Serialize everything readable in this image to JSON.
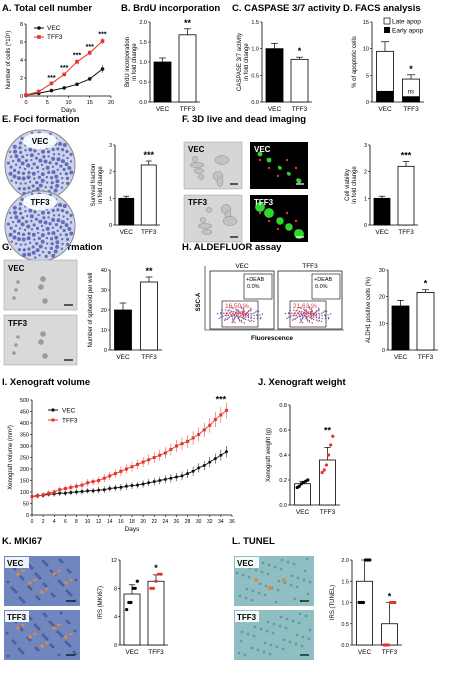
{
  "colors": {
    "red": "#e8322b",
    "black": "#111111",
    "white": "#ffffff",
    "gray": "#aaaaaa",
    "blue": "#3a4fa8",
    "purple": "#6a58b8",
    "green": "#2fd62f",
    "tissue_blue": "#6f86bf",
    "tunel_cyan": "#8fbfc3",
    "stain_orange": "#d98a4a"
  },
  "panels": {
    "A": {
      "title": "A. Total cell number",
      "legend": [
        "VEC",
        "TFF3"
      ],
      "stars": [
        "***",
        "***",
        "***",
        "***",
        "***"
      ]
    },
    "B": {
      "title": "B. BrdU incorporation",
      "stars": "**"
    },
    "C": {
      "title": "C. CASPASE 3/7 activity",
      "stars": "*"
    },
    "D": {
      "title": "D. FACS analysis",
      "legend": [
        "Late apop",
        "Early apop"
      ],
      "stars": "*",
      "ns": "ns"
    },
    "E": {
      "title": "E. Foci formation",
      "labels": [
        "VEC",
        "TFF3"
      ],
      "stars": "***"
    },
    "F": {
      "title": "F. 3D live and dead imaging",
      "labels": [
        "VEC",
        "VEC",
        "TFF3",
        "TFF3"
      ],
      "stars": "***"
    },
    "G": {
      "title": "G. Spheroid formation",
      "labels": [
        "VEC",
        "TFF3"
      ],
      "stars": "**"
    },
    "H": {
      "title": "H. ALDEFLUOR assay",
      "flow": {
        "groups": [
          "VEC",
          "TFF3"
        ],
        "deab_label": "+DEAB",
        "deab_value": "0.0%",
        "pcts": [
          "16.50 %",
          "21.63 %"
        ],
        "errs": [
          "± 2.09%",
          "± 0.98%"
        ],
        "xlabel": "Fluorescence",
        "ylabel": "SSC-A"
      },
      "stars": "*"
    },
    "I": {
      "title": "I. Xenograft volume",
      "legend": [
        "VEC",
        "TFF3"
      ],
      "stars": "***"
    },
    "J": {
      "title": "J. Xenograft weight",
      "stars": "**"
    },
    "K": {
      "title": "K. MKI67",
      "labels": [
        "VEC",
        "TFF3"
      ],
      "stars": "*"
    },
    "L": {
      "title": "L. TUNEL",
      "labels": [
        "VEC",
        "TFF3"
      ],
      "stars": "*"
    }
  },
  "chart_data": [
    {
      "id": "A",
      "type": "line",
      "x": [
        0,
        3,
        6,
        9,
        12,
        15,
        18
      ],
      "series": [
        {
          "name": "VEC",
          "values": [
            0.1,
            0.3,
            0.6,
            0.9,
            1.3,
            1.9,
            3.0
          ],
          "errors": [
            0,
            0,
            0.05,
            0.1,
            0.15,
            0.2,
            0.4
          ]
        },
        {
          "name": "TFF3",
          "values": [
            0.1,
            0.5,
            1.4,
            2.4,
            3.8,
            4.8,
            6.1
          ],
          "errors": [
            0,
            0.1,
            0.15,
            0.2,
            0.3,
            0.3,
            0.35
          ]
        }
      ],
      "xlabel": "Days",
      "ylabel": "Number of cells (*10⁵)",
      "xlim": [
        0,
        20
      ],
      "ylim": [
        0,
        8
      ],
      "xticks": [
        0,
        5,
        10,
        15,
        20
      ],
      "yticks": [
        0,
        2,
        4,
        6,
        8
      ]
    },
    {
      "id": "B",
      "type": "bar",
      "categories": [
        "VEC",
        "TFF3"
      ],
      "values": [
        1.0,
        1.68
      ],
      "errors": [
        0.1,
        0.15
      ],
      "ylabel": "BrdU incorporation in fold change",
      "ylim": [
        0,
        2
      ],
      "yticks": [
        0.0,
        0.5,
        1.0,
        1.5,
        2.0
      ]
    },
    {
      "id": "C",
      "type": "bar",
      "categories": [
        "VEC",
        "TFF3"
      ],
      "values": [
        1.0,
        0.8
      ],
      "errors": [
        0.1,
        0.04
      ],
      "ylabel": "CASPASE 3/7 activity in fold change",
      "ylim": [
        0,
        1.5
      ],
      "yticks": [
        0.0,
        0.5,
        1.0,
        1.5
      ]
    },
    {
      "id": "D",
      "type": "bar",
      "categories": [
        "VEC",
        "TFF3"
      ],
      "series": [
        {
          "name": "Early apop",
          "values": [
            2.0,
            1.0
          ]
        },
        {
          "name": "Late apop",
          "values": [
            7.5,
            3.3
          ]
        }
      ],
      "errors": [
        1.8,
        0.8
      ],
      "ylabel": "% of apoptotic cells",
      "ylim": [
        0,
        15
      ],
      "yticks": [
        0,
        5,
        10,
        15
      ]
    },
    {
      "id": "E",
      "type": "bar",
      "categories": [
        "VEC",
        "TFF3"
      ],
      "values": [
        1.0,
        2.25
      ],
      "errors": [
        0.08,
        0.15
      ],
      "ylabel": "Survival fraction in fold change",
      "ylim": [
        0,
        3
      ],
      "yticks": [
        0,
        1,
        2,
        3
      ]
    },
    {
      "id": "F",
      "type": "bar",
      "categories": [
        "VEC",
        "TFF3"
      ],
      "values": [
        1.0,
        2.2
      ],
      "errors": [
        0.08,
        0.18
      ],
      "ylabel": "Cell viability in fold change",
      "ylim": [
        0,
        3
      ],
      "yticks": [
        0,
        1,
        2,
        3
      ]
    },
    {
      "id": "G",
      "type": "bar",
      "categories": [
        "VEC",
        "TFF3"
      ],
      "values": [
        20,
        34
      ],
      "errors": [
        3.5,
        2.5
      ],
      "ylabel": "Number of spheroid per well",
      "ylim": [
        0,
        40
      ],
      "yticks": [
        0,
        10,
        20,
        30,
        40
      ]
    },
    {
      "id": "H",
      "type": "bar",
      "categories": [
        "VEC",
        "TFF3"
      ],
      "values": [
        16.5,
        21.6
      ],
      "errors": [
        2.1,
        1.0
      ],
      "ylabel": "ALDH1 positive cells (%)",
      "ylim": [
        0,
        30
      ],
      "yticks": [
        0,
        10,
        20,
        30
      ]
    },
    {
      "id": "I",
      "type": "line",
      "x": [
        0,
        1,
        2,
        3,
        4,
        5,
        6,
        7,
        8,
        9,
        10,
        11,
        12,
        13,
        14,
        15,
        16,
        17,
        18,
        19,
        20,
        21,
        22,
        23,
        24,
        25,
        26,
        27,
        28,
        29,
        30,
        31,
        32,
        33,
        34,
        35
      ],
      "series": [
        {
          "name": "VEC",
          "values": [
            80,
            85,
            85,
            90,
            92,
            95,
            95,
            98,
            100,
            102,
            105,
            105,
            108,
            110,
            115,
            118,
            120,
            125,
            128,
            130,
            135,
            140,
            145,
            150,
            155,
            160,
            165,
            170,
            180,
            190,
            205,
            215,
            230,
            245,
            260,
            275
          ],
          "errors": [
            10,
            10,
            10,
            10,
            12,
            12,
            12,
            12,
            12,
            12,
            12,
            12,
            14,
            14,
            14,
            14,
            15,
            15,
            15,
            15,
            16,
            16,
            17,
            17,
            18,
            18,
            18,
            19,
            19,
            20,
            20,
            20,
            22,
            22,
            24,
            25
          ]
        },
        {
          "name": "TFF3",
          "values": [
            80,
            82,
            88,
            95,
            100,
            110,
            115,
            120,
            125,
            130,
            140,
            145,
            150,
            160,
            170,
            180,
            190,
            200,
            210,
            220,
            230,
            240,
            250,
            260,
            270,
            285,
            300,
            310,
            320,
            335,
            350,
            370,
            390,
            415,
            435,
            455
          ],
          "errors": [
            10,
            10,
            12,
            12,
            12,
            14,
            14,
            14,
            15,
            15,
            16,
            16,
            17,
            18,
            18,
            19,
            20,
            20,
            21,
            22,
            22,
            23,
            24,
            24,
            25,
            26,
            27,
            28,
            28,
            29,
            30,
            31,
            32,
            33,
            34,
            35
          ]
        }
      ],
      "xlabel": "Days",
      "ylabel": "Xenograft volume (mm³)",
      "xlim": [
        0,
        36
      ],
      "ylim": [
        0,
        500
      ],
      "xticks": [
        0,
        2,
        4,
        6,
        8,
        10,
        12,
        14,
        16,
        18,
        20,
        22,
        24,
        26,
        28,
        30,
        32,
        34,
        36
      ],
      "yticks": [
        0,
        50,
        100,
        150,
        200,
        250,
        300,
        350,
        400,
        450,
        500
      ]
    },
    {
      "id": "J",
      "type": "bar",
      "categories": [
        "VEC",
        "TFF3"
      ],
      "values": [
        0.17,
        0.36
      ],
      "errors": [
        0.02,
        0.1
      ],
      "points": [
        [
          0.14,
          0.15,
          0.17,
          0.18,
          0.19,
          0.2
        ],
        [
          0.26,
          0.28,
          0.32,
          0.4,
          0.48,
          0.55
        ]
      ],
      "ylabel": "Xenograft weight (g)",
      "ylim": [
        0,
        0.8
      ],
      "yticks": [
        0.0,
        0.2,
        0.4,
        0.6,
        0.8
      ]
    },
    {
      "id": "K",
      "type": "bar",
      "categories": [
        "VEC",
        "TFF3"
      ],
      "values": [
        7.2,
        9.0
      ],
      "errors": [
        1.3,
        0.9
      ],
      "points": [
        [
          5.0,
          6.0,
          6.0,
          8.0,
          8.0,
          9.0
        ],
        [
          8.0,
          8.0,
          9.0,
          10.0,
          10.0
        ]
      ],
      "ylabel": "IRS (MKI67)",
      "ylim": [
        0,
        12
      ],
      "yticks": [
        0,
        4,
        8,
        12
      ]
    },
    {
      "id": "L",
      "type": "bar",
      "categories": [
        "VEC",
        "TFF3"
      ],
      "values": [
        1.5,
        0.5
      ],
      "errors": [
        0.5,
        0.5
      ],
      "points": [
        [
          1.0,
          1.0,
          1.0,
          2.0,
          2.0,
          2.0
        ],
        [
          0.0,
          0.0,
          0.0,
          1.0,
          1.0,
          1.0
        ]
      ],
      "ylabel": "IRS (TUNEL)",
      "ylim": [
        0,
        2.0
      ],
      "yticks": [
        0.0,
        0.5,
        1.0,
        1.5,
        2.0
      ]
    }
  ]
}
